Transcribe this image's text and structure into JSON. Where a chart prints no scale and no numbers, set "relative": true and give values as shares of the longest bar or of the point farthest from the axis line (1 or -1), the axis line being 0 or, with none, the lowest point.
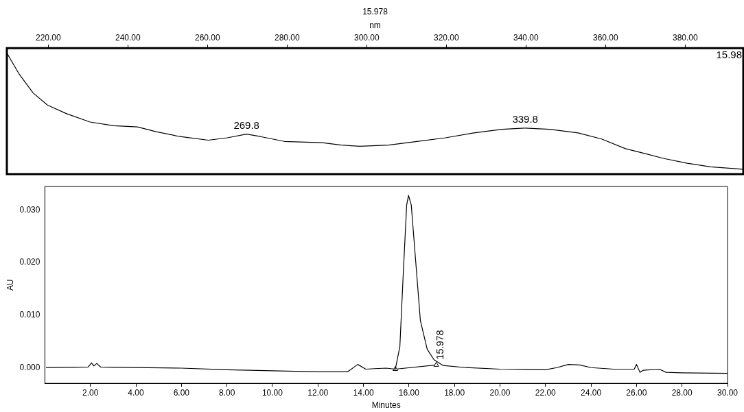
{
  "chart_data": [
    {
      "type": "line",
      "title": "15.978",
      "xlabel": "nm",
      "relative": true,
      "grid": false,
      "legend": false,
      "tick_labels": "x",
      "xlim": [
        209.6,
        394.6
      ],
      "xticks": [
        {
          "value": 220,
          "label": "220.00"
        },
        {
          "value": 240,
          "label": "240.00"
        },
        {
          "value": 260,
          "label": "260.00"
        },
        {
          "value": 280,
          "label": "280.00"
        },
        {
          "value": 300,
          "label": "300.00"
        },
        {
          "value": 320,
          "label": "320.00"
        },
        {
          "value": 340,
          "label": "340.00"
        },
        {
          "value": 360,
          "label": "360.00"
        },
        {
          "value": 380,
          "label": "380.00"
        }
      ],
      "series": [
        {
          "color": "#000000",
          "x": [
            209.6,
            212.6,
            216.2,
            219.8,
            224.5,
            230.5,
            236.4,
            242.4,
            247.1,
            253.1,
            260.2,
            265.0,
            269.8,
            273.3,
            279.3,
            288.8,
            293.6,
            298.3,
            305.5,
            312.6,
            319.8,
            326.9,
            334.0,
            339.8,
            346.0,
            353.1,
            359.0,
            365.0,
            369.8,
            374.5,
            380.5,
            386.4,
            394.5
          ],
          "values": [
            1.0,
            0.83,
            0.67,
            0.57,
            0.5,
            0.43,
            0.4,
            0.39,
            0.35,
            0.31,
            0.28,
            0.3,
            0.33,
            0.31,
            0.27,
            0.26,
            0.24,
            0.23,
            0.24,
            0.27,
            0.3,
            0.34,
            0.37,
            0.38,
            0.37,
            0.34,
            0.29,
            0.21,
            0.17,
            0.13,
            0.09,
            0.06,
            0.04
          ]
        }
      ],
      "annotations": [
        {
          "text": "269.8",
          "x": 269.8,
          "y": 0.33
        },
        {
          "text": "339.8",
          "x": 339.8,
          "y": 0.38
        },
        "15.98"
      ]
    },
    {
      "type": "line",
      "xlabel": "Minutes",
      "ylabel": "AU",
      "grid": false,
      "legend": false,
      "xlim": [
        0,
        30
      ],
      "ylim": [
        -0.003,
        0.0345
      ],
      "xticks": [
        {
          "value": 2,
          "label": "2.00"
        },
        {
          "value": 4,
          "label": "4.00"
        },
        {
          "value": 6,
          "label": "6.00"
        },
        {
          "value": 8,
          "label": "8.00"
        },
        {
          "value": 10,
          "label": "10.00"
        },
        {
          "value": 12,
          "label": "12.00"
        },
        {
          "value": 14,
          "label": "14.00"
        },
        {
          "value": 16,
          "label": "16.00"
        },
        {
          "value": 18,
          "label": "18.00"
        },
        {
          "value": 20,
          "label": "20.00"
        },
        {
          "value": 22,
          "label": "22.00"
        },
        {
          "value": 24,
          "label": "24.00"
        },
        {
          "value": 26,
          "label": "26.00"
        },
        {
          "value": 28,
          "label": "28.00"
        },
        {
          "value": 30,
          "label": "30.00"
        }
      ],
      "yticks": [
        {
          "value": 0,
          "label": "0.000"
        },
        {
          "value": 0.01,
          "label": "0.010"
        },
        {
          "value": 0.02,
          "label": "0.020"
        },
        {
          "value": 0.03,
          "label": "0.030"
        }
      ],
      "series": [
        {
          "color": "#000000",
          "x": [
            0.05,
            1.9,
            2.05,
            2.15,
            2.28,
            2.45,
            4,
            6,
            8,
            10,
            12,
            13.3,
            13.75,
            14.1,
            14.5,
            15.0,
            15.4,
            15.6,
            15.75,
            15.9,
            15.98,
            16.1,
            16.3,
            16.5,
            16.8,
            17.1,
            17.5,
            18.5,
            20,
            22,
            22.5,
            23,
            23.5,
            24,
            25,
            25.9,
            26,
            26.15,
            26.3,
            27,
            27.3,
            28,
            30
          ],
          "values": [
            0,
            0.0001,
            0.0009,
            0.0003,
            0.0008,
            0.0001,
            0,
            -0.0001,
            -0.0004,
            -0.0006,
            -0.0008,
            -0.0008,
            0.0006,
            -0.0003,
            -0.0002,
            -0.0001,
            -0.0003,
            0.004,
            0.018,
            0.031,
            0.0328,
            0.031,
            0.02,
            0.009,
            0.0035,
            0.0015,
            0.0004,
            0,
            -0.0003,
            -0.0004,
            0,
            0.0006,
            0.0005,
            0,
            -0.0003,
            -0.0003,
            0.0006,
            -0.0009,
            -0.0005,
            -0.0003,
            -0.0009,
            -0.001,
            -0.0011
          ]
        },
        {
          "color": "#000000",
          "type": "line",
          "marker": "triangle",
          "x": [
            15.4,
            17.2
          ],
          "values": [
            -0.0003,
            0.0005
          ]
        }
      ],
      "annotations": [
        "15.978"
      ]
    }
  ]
}
